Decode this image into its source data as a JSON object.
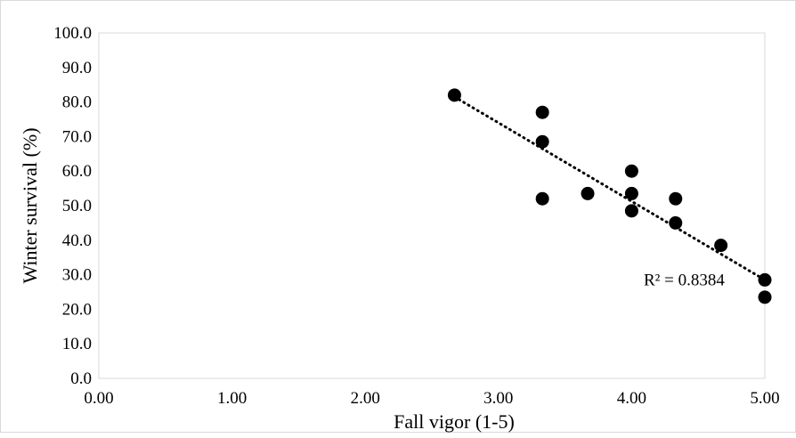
{
  "chart_data": {
    "type": "scatter",
    "title": "",
    "xlabel": "Fall vigor (1-5)",
    "ylabel": "Winter survival (%)",
    "xlim": [
      0,
      5
    ],
    "ylim": [
      0,
      100
    ],
    "x_ticks": [
      "0.00",
      "1.00",
      "2.00",
      "3.00",
      "4.00",
      "5.00"
    ],
    "y_ticks": [
      "0.0",
      "10.0",
      "20.0",
      "30.0",
      "40.0",
      "50.0",
      "60.0",
      "70.0",
      "80.0",
      "90.0",
      "100.0"
    ],
    "grid": false,
    "legend": "none",
    "series": [
      {
        "color": "#000000",
        "points": [
          {
            "x": 2.67,
            "y": 82.0
          },
          {
            "x": 3.33,
            "y": 77.0
          },
          {
            "x": 3.33,
            "y": 68.5
          },
          {
            "x": 3.33,
            "y": 52.0
          },
          {
            "x": 3.67,
            "y": 53.5
          },
          {
            "x": 4.0,
            "y": 60.0
          },
          {
            "x": 4.0,
            "y": 53.5
          },
          {
            "x": 4.0,
            "y": 48.5
          },
          {
            "x": 4.33,
            "y": 52.0
          },
          {
            "x": 4.33,
            "y": 45.0
          },
          {
            "x": 4.67,
            "y": 38.5
          },
          {
            "x": 5.0,
            "y": 28.5
          },
          {
            "x": 5.0,
            "y": 23.5
          }
        ]
      }
    ],
    "trendline": {
      "type": "linear",
      "style": "dotted",
      "color": "#000000",
      "start": {
        "x": 2.67,
        "y": 81.5
      },
      "end": {
        "x": 5.0,
        "y": 28.5
      },
      "r2_label": "R² = 0.8384"
    }
  }
}
